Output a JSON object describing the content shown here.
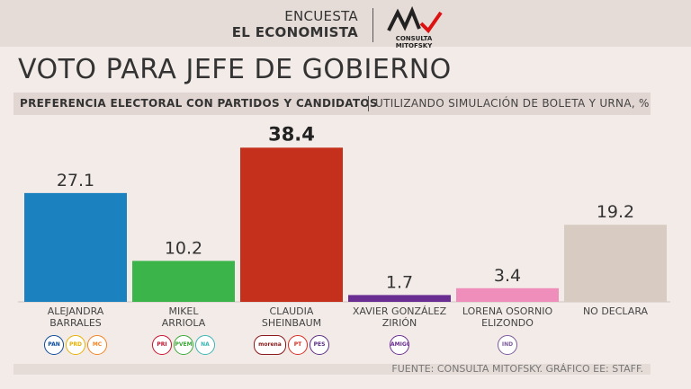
{
  "header": {
    "survey_line1": "ENCUESTA",
    "survey_line2": "EL ECONOMISTA",
    "logo_text": "CONSULTA MITOFSKY"
  },
  "title": "VOTO PARA JEFE DE GOBIERNO",
  "subtitle": {
    "bold": "PREFERENCIA ELECTORAL CON PARTIDOS Y CANDIDATOS",
    "light": "UTILIZANDO SIMULACIÓN DE BOLETA Y URNA, %"
  },
  "footer": "FUENTE: CONSULTA MITOFSKY.  GRÁFICO EE: STAFF.",
  "chart_data": {
    "type": "bar",
    "title": "VOTO PARA JEFE DE GOBIERNO",
    "ylabel": "%",
    "ylim": [
      0,
      40
    ],
    "grid": false,
    "categories": [
      "ALEJANDRA BARRALES",
      "MIKEL ARRIOLA",
      "CLAUDIA SHEINBAUM",
      "XAVIER GONZÁLEZ ZIRIÓN",
      "LORENA OSORNIO ELIZONDO",
      "NO DECLARA"
    ],
    "values": [
      27.1,
      10.2,
      38.4,
      1.7,
      3.4,
      19.2
    ],
    "value_labels": [
      "27.1",
      "10.2",
      "38.4",
      "1.7",
      "3.4",
      "19.2"
    ],
    "colors": [
      "#1b82bf",
      "#3bb54a",
      "#c4301c",
      "#6a2d91",
      "#ef8ebb",
      "#d8ccc2"
    ],
    "label_lines": [
      [
        "ALEJANDRA",
        "BARRALES"
      ],
      [
        "MIKEL",
        "ARRIOLA"
      ],
      [
        "CLAUDIA",
        "SHEINBAUM"
      ],
      [
        "XAVIER GONZÁLEZ",
        "ZIRIÓN"
      ],
      [
        "LORENA OSORNIO",
        "ELIZONDO"
      ],
      [
        "NO DECLARA"
      ]
    ],
    "highlight_index": 2
  },
  "party_logos": [
    [
      {
        "text": "PAN",
        "color": "#0a4a9a",
        "shape": "circle"
      },
      {
        "text": "PRD",
        "color": "#e8b000",
        "shape": "circle"
      },
      {
        "text": "MC",
        "color": "#f58220",
        "shape": "circle"
      }
    ],
    [
      {
        "text": "PRI",
        "color": "#c8102e",
        "shape": "circle"
      },
      {
        "text": "PVEM",
        "color": "#3aa935",
        "shape": "circle"
      },
      {
        "text": "NA",
        "color": "#39b5b5",
        "shape": "circle"
      }
    ],
    [
      {
        "text": "morena",
        "color": "#8b1a1a",
        "shape": "wide"
      },
      {
        "text": "PT",
        "color": "#d62e1f",
        "shape": "circle"
      },
      {
        "text": "PES",
        "color": "#5a2d82",
        "shape": "circle"
      }
    ],
    [
      {
        "text": "AMIGOS",
        "color": "#6a2d91",
        "shape": "circle"
      }
    ],
    [
      {
        "text": "IND",
        "color": "#7a5a9a",
        "shape": "circle"
      }
    ],
    []
  ]
}
